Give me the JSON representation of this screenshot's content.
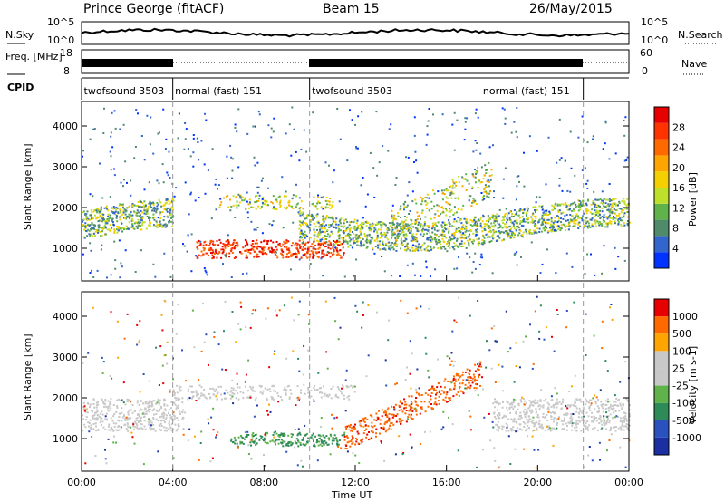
{
  "header": {
    "station": "Prince George (fitACF)",
    "beam": "Beam 15",
    "date": "26/May/2015"
  },
  "colors": {
    "power_scale": [
      "#0033ff",
      "#3366cc",
      "#4f8a6b",
      "#5fb34a",
      "#bfe02a",
      "#f5d000",
      "#ffa500",
      "#ff6a00",
      "#ff3300",
      "#e60000"
    ],
    "velocity_scale": [
      "#e60000",
      "#ff6a00",
      "#ffa500",
      "#c8c8c8",
      "#c8c8c8",
      "#5fb34a",
      "#2e8b57",
      "#2a52be",
      "#1c2fa0"
    ]
  },
  "chart_data": [
    {
      "type": "line",
      "name": "noise_panel",
      "left_label": "N.Sky",
      "right_label": "N.Search",
      "left_ticks": [
        "10^5",
        "10^0"
      ],
      "right_ticks": [
        "10^5",
        "10^0"
      ]
    },
    {
      "type": "line",
      "name": "frequency_panel",
      "left_label": "Freq. [MHz]",
      "right_label": "Nave",
      "left_ticks": [
        "18",
        "8"
      ],
      "right_ticks": [
        "60",
        "0"
      ]
    },
    {
      "type": "table",
      "name": "cpid_panel",
      "label": "CPID",
      "segments": [
        {
          "start_hour": 0,
          "end_hour": 4,
          "name": "twofsound 3503"
        },
        {
          "start_hour": 4,
          "end_hour": 10,
          "name": "normal (fast) 151"
        },
        {
          "start_hour": 10,
          "end_hour": 22,
          "name": "twofsound 3503"
        },
        {
          "start_hour": 22,
          "end_hour": 24,
          "name": "normal (fast) 151"
        }
      ],
      "segment_labels": [
        {
          "hour": 0.1,
          "text": "twofsound 3503"
        },
        {
          "hour": 4.1,
          "text": "normal (fast) 151"
        },
        {
          "hour": 10.1,
          "text": "twofsound 3503"
        },
        {
          "hour": 17.6,
          "text": "normal (fast) 151"
        }
      ]
    },
    {
      "type": "heatmap",
      "name": "power_panel",
      "ylabel": "Slant Range [km]",
      "yticks": [
        "4000",
        "3000",
        "2000",
        "1000"
      ],
      "ylim": [
        200,
        4600
      ],
      "colorbar_label": "Power [dB]",
      "colorbar_ticks": [
        "28",
        "24",
        "20",
        "16",
        "12",
        "8",
        "4"
      ]
    },
    {
      "type": "heatmap",
      "name": "velocity_panel",
      "ylabel": "Slant Range [km]",
      "yticks": [
        "4000",
        "3000",
        "2000",
        "1000"
      ],
      "ylim": [
        200,
        4600
      ],
      "colorbar_label": "Velocity [m s-1]",
      "colorbar_ticks": [
        "1000",
        "500",
        "100",
        "25",
        "-25",
        "-100",
        "-500",
        "-1000"
      ]
    }
  ],
  "xaxis": {
    "ticks": [
      "00:00",
      "04:00",
      "08:00",
      "12:00",
      "16:00",
      "20:00",
      "00:00"
    ],
    "label": "Time UT",
    "xlim_hours": [
      0,
      24
    ]
  }
}
